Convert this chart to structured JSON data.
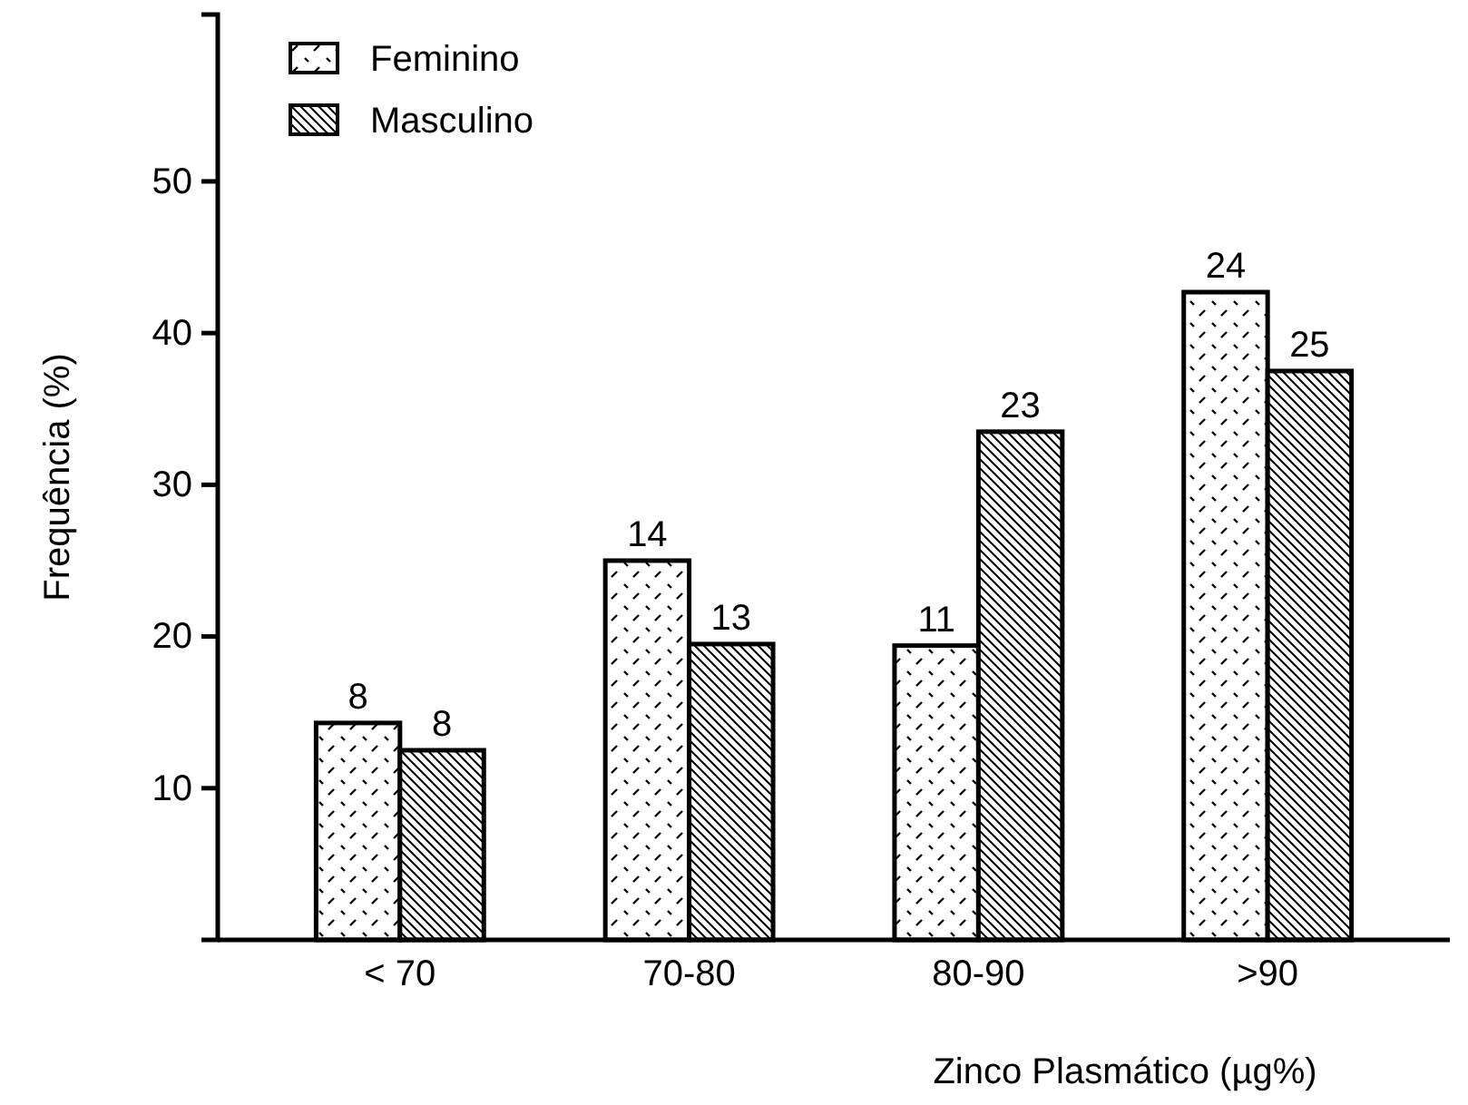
{
  "chart_data": {
    "type": "bar",
    "xlabel": "Zinco Plasmático (µg%)",
    "ylabel": "Frequência (%)",
    "categories": [
      "< 70",
      "70-80",
      "80-90",
      ">90"
    ],
    "series": [
      {
        "name": "Feminino",
        "color": "#000000",
        "values": [
          14.3,
          25.0,
          19.4,
          42.7
        ]
      },
      {
        "name": "Masculino",
        "color": "#000000",
        "values": [
          12.5,
          19.5,
          33.5,
          37.5
        ]
      }
    ],
    "annotations": [
      {
        "text": "8",
        "x": "< 70",
        "y": 14.3
      },
      {
        "text": "14",
        "x": "70-80",
        "y": 25.0
      },
      {
        "text": "11",
        "x": "80-90",
        "y": 19.4
      },
      {
        "text": "24",
        "x": ">90",
        "y": 42.7
      },
      {
        "text": "8",
        "x": "< 70",
        "y": 12.5
      },
      {
        "text": "13",
        "x": "70-80",
        "y": 19.5
      },
      {
        "text": "23",
        "x": "80-90",
        "y": 33.5
      },
      {
        "text": "25",
        "x": ">90",
        "y": 37.5
      }
    ],
    "ylim": [
      0,
      61
    ],
    "yticks": [
      10,
      20,
      30,
      40,
      50
    ],
    "legend": "top left",
    "grid": false
  }
}
